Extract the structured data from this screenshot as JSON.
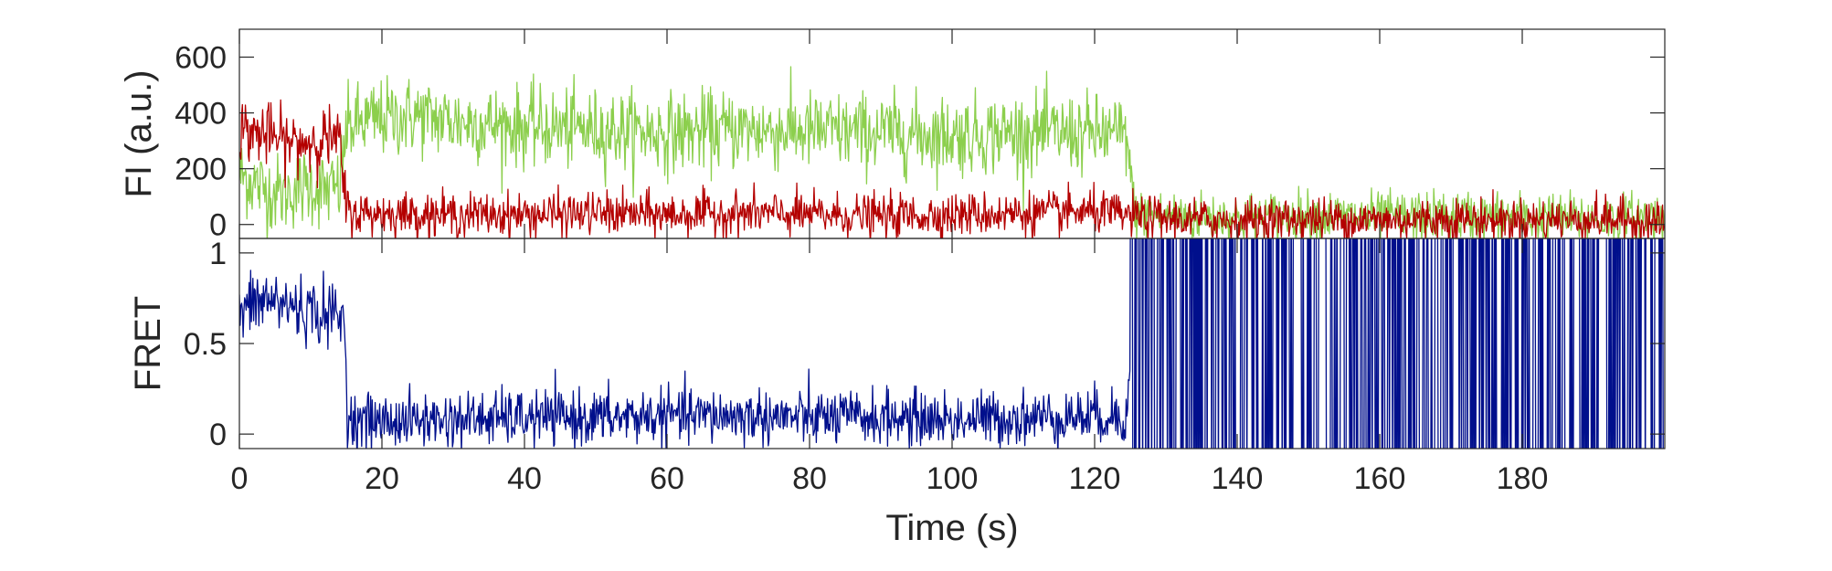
{
  "chart_data": [
    {
      "type": "line",
      "panel": "top",
      "ylabel": "FI (a.u.)",
      "xlabel": "",
      "xlim": [
        0,
        200
      ],
      "ylim": [
        -50,
        700
      ],
      "yticks": [
        0,
        200,
        400,
        600
      ],
      "ytick_labels": [
        "0",
        "200",
        "400",
        "600"
      ],
      "grid": false,
      "legend": "none",
      "series": [
        {
          "color": "#8ccf4d",
          "x": [
            0,
            2,
            4,
            6,
            8,
            10,
            12,
            14,
            15,
            16,
            20,
            25,
            30,
            40,
            50,
            60,
            70,
            80,
            90,
            100,
            110,
            120,
            124.5,
            125.5,
            126,
            130,
            140,
            150,
            160,
            170,
            180,
            190,
            200
          ],
          "y": [
            180,
            150,
            120,
            110,
            130,
            140,
            120,
            130,
            340,
            360,
            380,
            390,
            370,
            350,
            340,
            330,
            340,
            335,
            330,
            320,
            330,
            325,
            320,
            60,
            40,
            30,
            25,
            30,
            25,
            30,
            25,
            20,
            30
          ]
        },
        {
          "color": "#b40000",
          "x": [
            0,
            2,
            4,
            6,
            8,
            10,
            12,
            14,
            15,
            16,
            20,
            30,
            40,
            50,
            60,
            70,
            80,
            90,
            100,
            110,
            120,
            125,
            130,
            140,
            150,
            160,
            170,
            180,
            190,
            200
          ],
          "y": [
            340,
            330,
            320,
            300,
            290,
            300,
            310,
            300,
            60,
            40,
            40,
            35,
            35,
            40,
            35,
            40,
            35,
            30,
            35,
            40,
            45,
            30,
            20,
            15,
            20,
            15,
            20,
            15,
            20,
            10
          ]
        }
      ]
    },
    {
      "type": "line",
      "panel": "bottom",
      "ylabel": "FRET",
      "xlabel": "Time (s)",
      "xlim": [
        0,
        200
      ],
      "ylim": [
        -0.08,
        1.08
      ],
      "yticks": [
        0,
        0.5,
        1
      ],
      "ytick_labels": [
        "0",
        "0.5",
        "1"
      ],
      "xticks": [
        0,
        20,
        40,
        60,
        80,
        100,
        120,
        140,
        160,
        180
      ],
      "xtick_labels": [
        "0",
        "20",
        "40",
        "60",
        "80",
        "100",
        "120",
        "140",
        "160",
        "180"
      ],
      "grid": false,
      "legend": "none",
      "series": [
        {
          "color": "#000f8c",
          "x": [
            0,
            2,
            4,
            6,
            8,
            10,
            12,
            14,
            14.8,
            15.2,
            20,
            30,
            40,
            50,
            60,
            70,
            80,
            90,
            100,
            110,
            120,
            124.5,
            125.5,
            130,
            140,
            150,
            160,
            170,
            180,
            190,
            200
          ],
          "y": [
            0.66,
            0.72,
            0.74,
            0.72,
            0.7,
            0.68,
            0.66,
            0.65,
            0.6,
            0.08,
            0.07,
            0.08,
            0.09,
            0.09,
            0.1,
            0.1,
            0.09,
            0.09,
            0.08,
            0.09,
            0.1,
            0.1,
            0.55,
            0.5,
            0.5,
            0.5,
            0.5,
            0.5,
            0.5,
            0.5,
            0.5
          ]
        }
      ]
    }
  ]
}
